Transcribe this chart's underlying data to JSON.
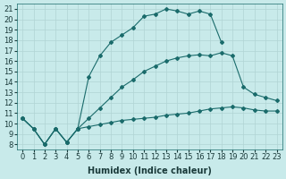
{
  "xlabel": "Humidex (Indice chaleur)",
  "bg_color": "#c8eaea",
  "grid_color": "#b0d4d4",
  "line_color": "#1a6b6b",
  "xlim": [
    -0.5,
    23.5
  ],
  "ylim": [
    7.5,
    21.5
  ],
  "xticks": [
    0,
    1,
    2,
    3,
    4,
    5,
    6,
    7,
    8,
    9,
    10,
    11,
    12,
    13,
    14,
    15,
    16,
    17,
    18,
    19,
    20,
    21,
    22,
    23
  ],
  "yticks": [
    8,
    9,
    10,
    11,
    12,
    13,
    14,
    15,
    16,
    17,
    18,
    19,
    20,
    21
  ],
  "line1_x": [
    0,
    1,
    2,
    3,
    4,
    5,
    6,
    7,
    8,
    9,
    10,
    11,
    12,
    13,
    14,
    15,
    16,
    17,
    18
  ],
  "line1_y": [
    10.5,
    9.5,
    8.0,
    9.5,
    8.2,
    9.5,
    14.5,
    16.5,
    17.8,
    18.5,
    19.2,
    20.3,
    20.5,
    21.0,
    20.8,
    20.5,
    20.8,
    20.5,
    17.8
  ],
  "line2_x": [
    0,
    1,
    2,
    3,
    4,
    5,
    6,
    7,
    8,
    9,
    10,
    11,
    12,
    13,
    14,
    15,
    16,
    17,
    18,
    19,
    20,
    21,
    22,
    23
  ],
  "line2_y": [
    10.5,
    9.5,
    8.0,
    9.5,
    8.2,
    9.5,
    10.5,
    11.5,
    12.5,
    13.5,
    14.2,
    15.0,
    15.5,
    16.0,
    16.3,
    16.5,
    16.6,
    16.5,
    16.8,
    16.5,
    13.5,
    12.8,
    12.5,
    12.2
  ],
  "line3_x": [
    5,
    6,
    7,
    8,
    9,
    10,
    11,
    12,
    13,
    14,
    15,
    16,
    17,
    18,
    19,
    20,
    21,
    22,
    23
  ],
  "line3_y": [
    9.5,
    9.7,
    9.9,
    10.1,
    10.3,
    10.4,
    10.5,
    10.6,
    10.8,
    10.9,
    11.0,
    11.2,
    11.4,
    11.5,
    11.6,
    11.5,
    11.3,
    11.2,
    11.2
  ],
  "line4_x": [
    0,
    1,
    2,
    3,
    4,
    5
  ],
  "line4_y": [
    10.5,
    9.5,
    8.0,
    9.5,
    8.2,
    9.5
  ],
  "font_size": 7
}
